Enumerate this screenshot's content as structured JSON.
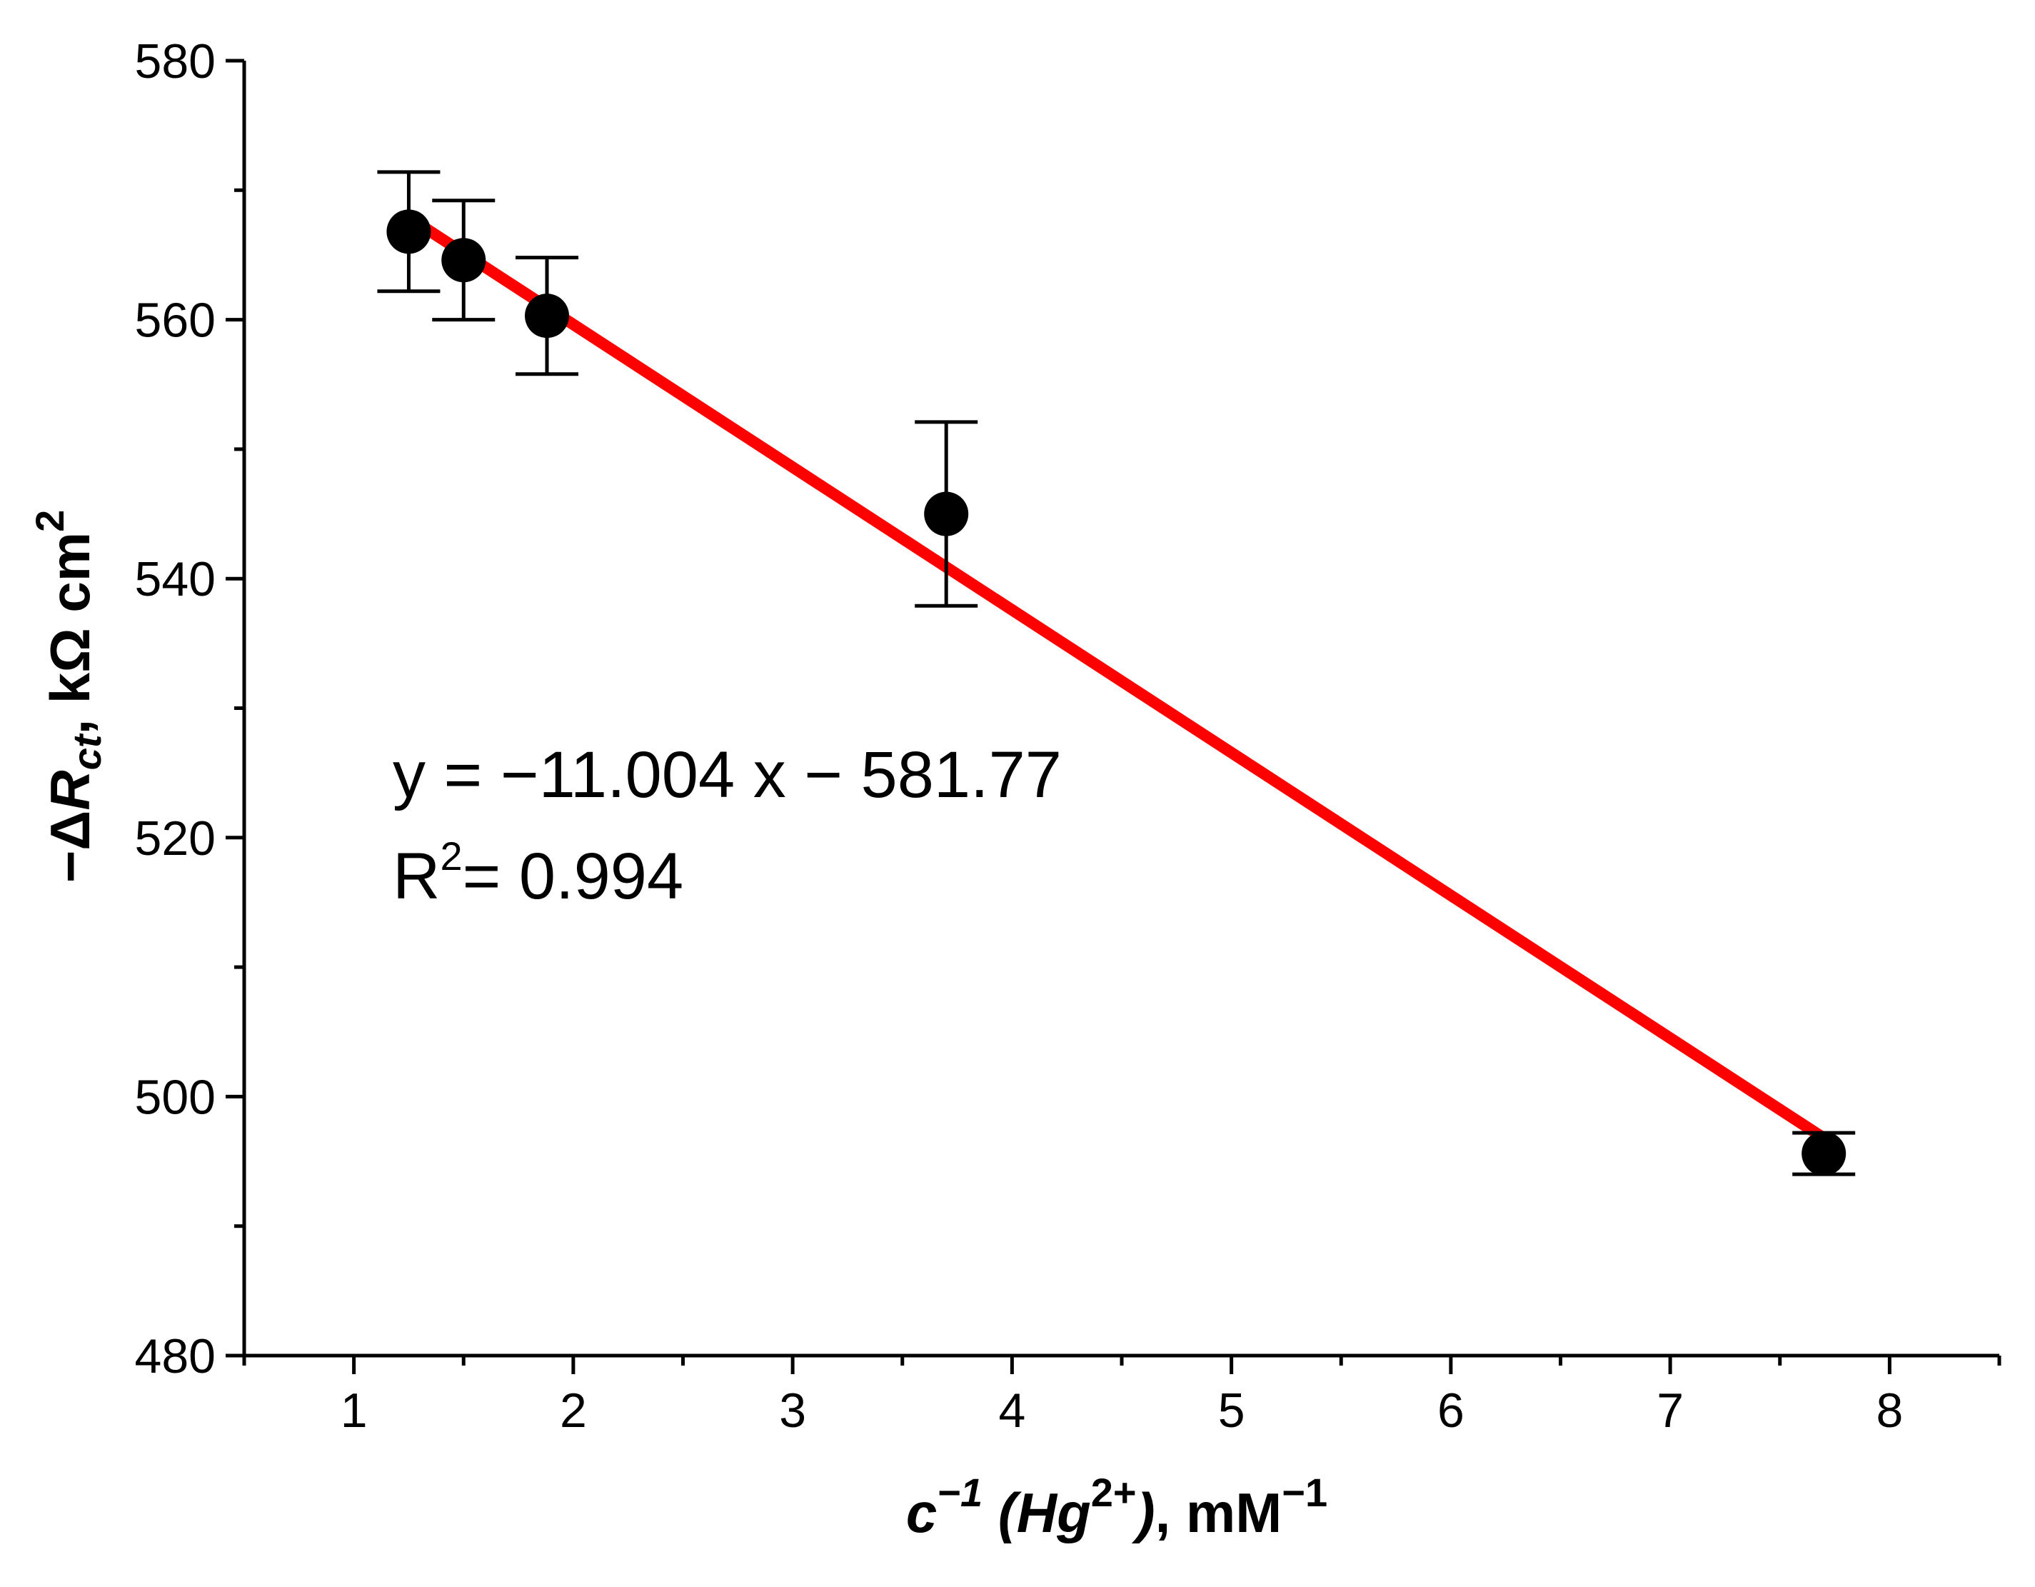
{
  "chart_data": {
    "type": "scatter",
    "title": "",
    "xlabel": {
      "symbol": "c",
      "exponent": "−1",
      "species": "Hg",
      "charge": "2+",
      "unit": ", mM",
      "unit_exponent": "−1"
    },
    "ylabel": {
      "prefix": "−Δ",
      "symbol": "R",
      "subscript": "ct",
      "comma": ",",
      "unit": " kΩ cm",
      "unit_exponent": "2"
    },
    "xlim": [
      0.5,
      8.5
    ],
    "ylim": [
      480,
      580
    ],
    "x_major_ticks": [
      1,
      2,
      3,
      4,
      5,
      6,
      7,
      8
    ],
    "x_tick_labels": [
      "1",
      "2",
      "3",
      "4",
      "5",
      "6",
      "7",
      "8"
    ],
    "x_minor_ticks": [
      0.5,
      1.5,
      2.5,
      3.5,
      4.5,
      5.5,
      6.5,
      7.5,
      8.5
    ],
    "y_major_ticks": [
      480,
      500,
      520,
      540,
      560,
      580
    ],
    "y_tick_labels": [
      "480",
      "500",
      "520",
      "540",
      "560",
      "580"
    ],
    "y_minor_ticks": [
      490,
      510,
      530,
      550,
      570
    ],
    "grid": false,
    "series": [
      {
        "name": "data",
        "marker": "circle",
        "color": "#000000",
        "x": [
          1.25,
          1.5,
          1.88,
          3.7,
          7.7
        ],
        "y": [
          566.8,
          564.6,
          560.3,
          545.0,
          495.6
        ],
        "error": [
          4.6,
          4.6,
          4.5,
          7.1,
          1.6
        ]
      },
      {
        "name": "fit",
        "type": "line",
        "color": "#ff0000",
        "x": [
          1.25,
          7.7
        ],
        "y": [
          567.9,
          496.8
        ]
      }
    ],
    "annotations": {
      "equation": "y = −11.004 x − 581.77",
      "r2_label": "R",
      "r2_exponent": "2",
      "r2_value": "= 0.994"
    }
  }
}
